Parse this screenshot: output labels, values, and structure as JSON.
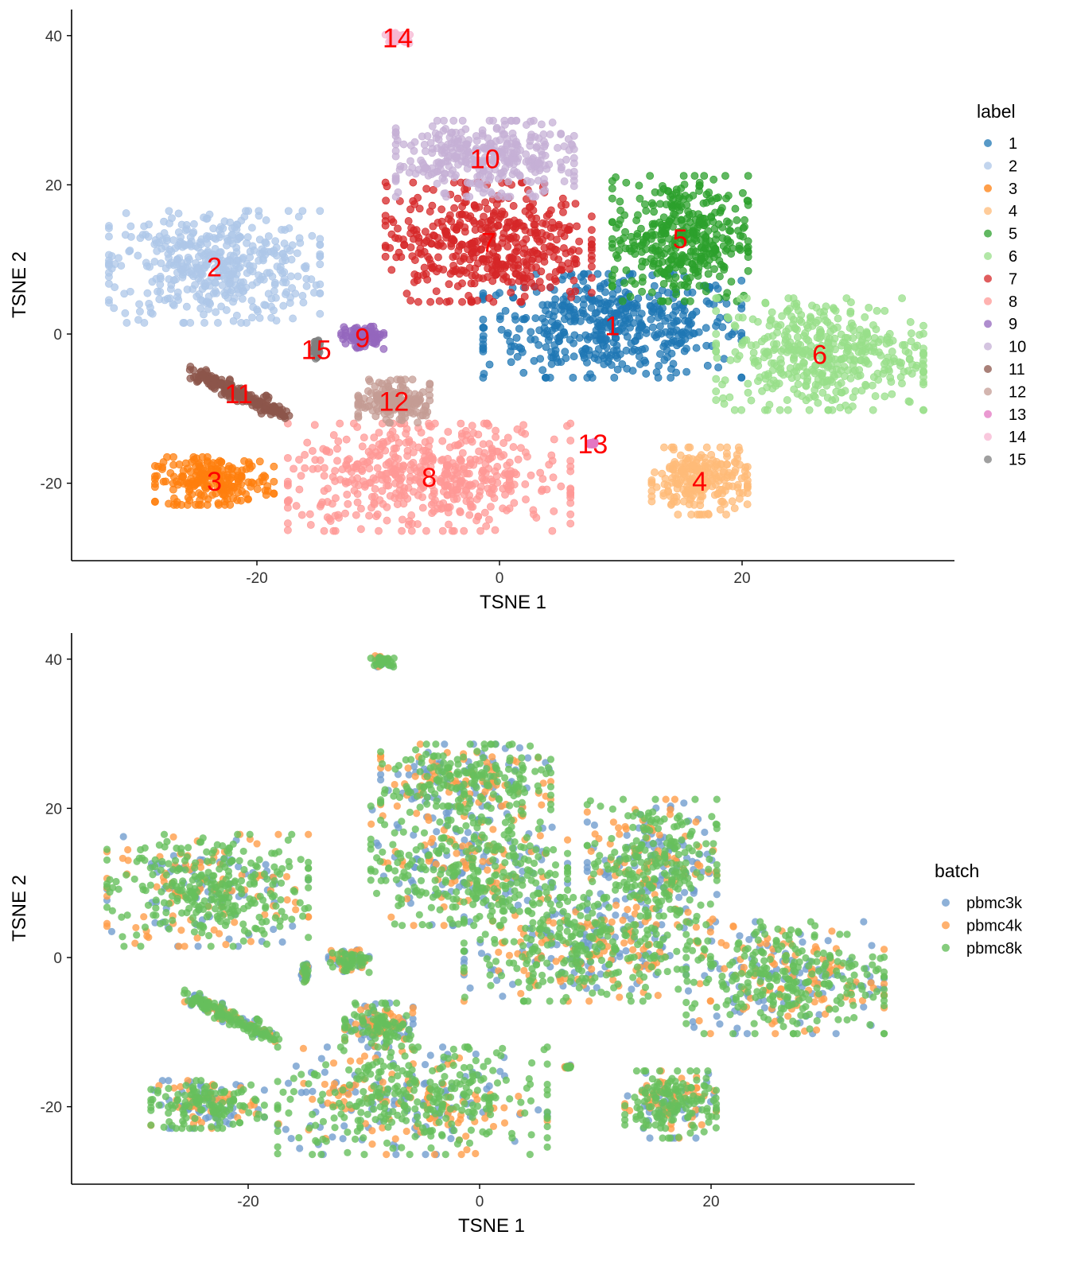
{
  "chart_data": [
    {
      "type": "scatter",
      "xlabel": "TSNE 1",
      "ylabel": "TSNE 2",
      "xlim": [
        -35.3,
        37.5
      ],
      "ylim": [
        -30.4,
        43.5
      ],
      "xticks": [
        -20,
        0,
        20
      ],
      "yticks": [
        -20,
        0,
        20,
        40
      ],
      "grid": false,
      "legend_title": "label",
      "legend_position": "right",
      "clusters": [
        {
          "label": "1",
          "color": "#1f77b4",
          "center": [
            9.3,
            1.1
          ],
          "x_range": [
            -1.8,
            19.5
          ],
          "y_range": [
            -6.4,
            7.5
          ]
        },
        {
          "label": "2",
          "color": "#aec7e8",
          "center": [
            -23.5,
            9.0
          ],
          "x_range": [
            -32.0,
            -14.6
          ],
          "y_range": [
            1.0,
            16.0
          ]
        },
        {
          "label": "3",
          "color": "#ff7f0e",
          "center": [
            -23.5,
            -19.7
          ],
          "x_range": [
            -27.7,
            -17.9
          ],
          "y_range": [
            -22.4,
            -16.0
          ]
        },
        {
          "label": "4",
          "color": "#ffbb78",
          "center": [
            16.5,
            -19.7
          ],
          "x_range": [
            12.9,
            20.8
          ],
          "y_range": [
            -24.0,
            -15.0
          ]
        },
        {
          "label": "5",
          "color": "#2ca02c",
          "center": [
            14.9,
            12.8
          ],
          "x_range": [
            10.6,
            21.8
          ],
          "y_range": [
            3.2,
            20.0
          ]
        },
        {
          "label": "6",
          "color": "#98df8a",
          "center": [
            26.4,
            -2.7
          ],
          "x_range": [
            17.5,
            34.6
          ],
          "y_range": [
            -10.7,
            4.3
          ]
        },
        {
          "label": "7",
          "color": "#d62728",
          "center": [
            -0.9,
            12.3
          ],
          "x_range": [
            -8.7,
            8.3
          ],
          "y_range": [
            3.7,
            19.7
          ]
        },
        {
          "label": "8",
          "color": "#ff9896",
          "center": [
            -5.8,
            -19.2
          ],
          "x_range": [
            -18.6,
            4.7
          ],
          "y_range": [
            -27.2,
            -12.8
          ]
        },
        {
          "label": "9",
          "color": "#9467bd",
          "center": [
            -11.3,
            -0.5
          ],
          "x_range": [
            -13.3,
            -9.8
          ],
          "y_range": [
            -2.0,
            1.0
          ]
        },
        {
          "label": "10",
          "color": "#c5b0d5",
          "center": [
            -1.2,
            23.5
          ],
          "x_range": [
            -8.7,
            6.0
          ],
          "y_range": [
            18.1,
            28.3
          ]
        },
        {
          "label": "11",
          "color": "#8c564b",
          "center": [
            -21.5,
            -8.0
          ],
          "x_range": [
            -25.0,
            -17.6
          ],
          "y_range": [
            -11.2,
            -5.3
          ]
        },
        {
          "label": "12",
          "color": "#c49c94",
          "center": [
            -8.7,
            -9.0
          ],
          "x_range": [
            -12.3,
            -6.4
          ],
          "y_range": [
            -12.8,
            -7.0
          ]
        },
        {
          "label": "13",
          "color": "#e377c2",
          "center": [
            7.7,
            -14.7
          ],
          "x_range": [
            7.3,
            8.1
          ],
          "y_range": [
            -15.0,
            -14.4
          ]
        },
        {
          "label": "14",
          "color": "#f7b6d2",
          "center": [
            -8.4,
            39.7
          ],
          "x_range": [
            -9.3,
            -7.3
          ],
          "y_range": [
            38.9,
            40.4
          ]
        },
        {
          "label": "15",
          "color": "#7f7f7f",
          "center": [
            -15.1,
            -2.1
          ],
          "x_range": [
            -15.4,
            -14.8
          ],
          "y_range": [
            -3.5,
            -1.0
          ]
        }
      ]
    },
    {
      "type": "scatter",
      "xlabel": "TSNE 1",
      "ylabel": "TSNE 2",
      "xlim": [
        -35.3,
        37.5
      ],
      "ylim": [
        -30.4,
        43.5
      ],
      "xticks": [
        -20,
        0,
        20
      ],
      "yticks": [
        -20,
        0,
        20,
        40
      ],
      "grid": false,
      "legend_title": "batch",
      "legend_position": "right",
      "series": [
        {
          "name": "pbmc3k",
          "color": "#729ece"
        },
        {
          "name": "pbmc4k",
          "color": "#ff9e4a"
        },
        {
          "name": "pbmc8k",
          "color": "#67bf5c"
        }
      ],
      "note_points_share_coordinates_with_first_plot": true
    }
  ]
}
